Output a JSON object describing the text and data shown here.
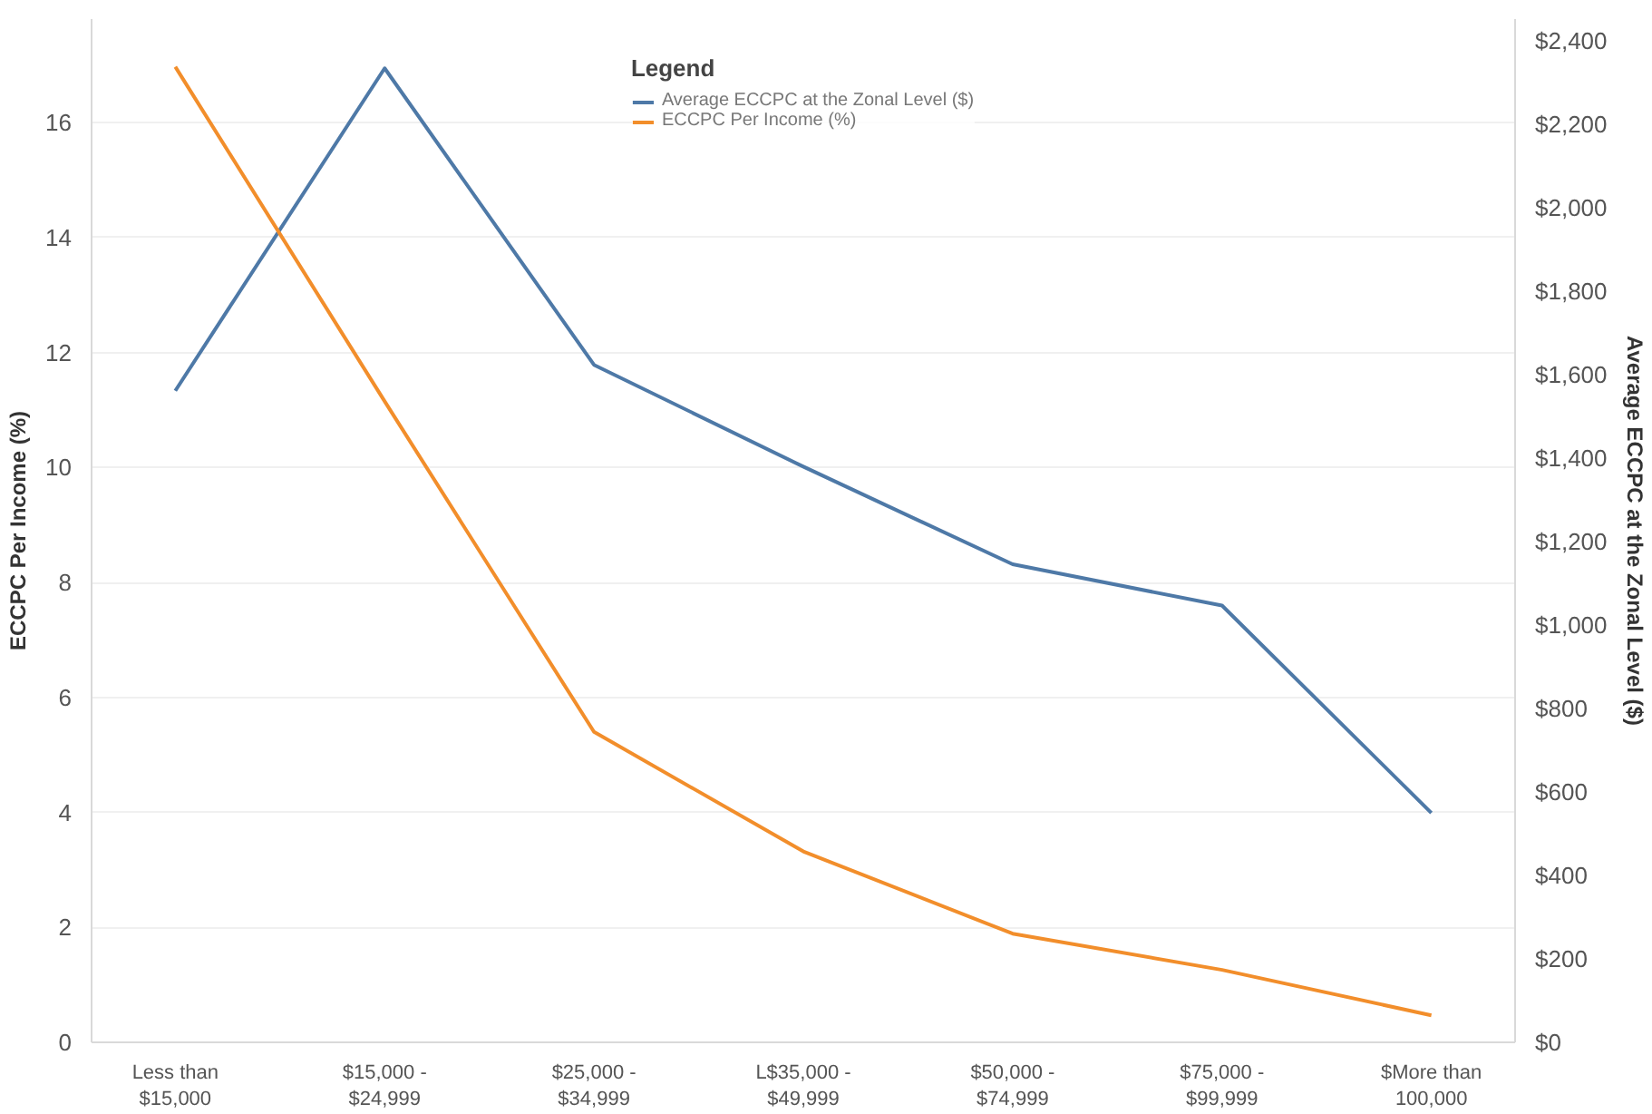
{
  "chart_data": {
    "type": "line",
    "categories": [
      "Less than\n$15,000",
      "$15,000 -\n$24,999",
      "$25,000 -\n$34,999",
      "L$35,000 -\n$49,999",
      "$50,000 -\n$74,999",
      "$75,000 -\n$99,999",
      "$More than\n100,000"
    ],
    "series": [
      {
        "name": "Average ECCPC at the Zonal Level ($)",
        "color": "#4e79a7",
        "axis": "y2",
        "values": [
          1562,
          2335,
          1624,
          1380,
          1146,
          1047,
          550
        ]
      },
      {
        "name": "ECCPC Per Income (%)",
        "color": "#f28e2b",
        "values": [
          16.97,
          11.15,
          5.4,
          3.32,
          1.89,
          1.26,
          0.47
        ]
      }
    ],
    "ylabel": "ECCPC Per Income (%)",
    "y2label": "Average ECCPC at the Zonal Level ($)",
    "legend_title": "Legend",
    "legend": "top",
    "ylim": [
      0,
      17.8
    ],
    "yticks": [
      0,
      2,
      4,
      6,
      8,
      10,
      12,
      14,
      16
    ],
    "y2lim": [
      0,
      2453
    ],
    "y2ticks": [
      {
        "value": 0,
        "label": "$0"
      },
      {
        "value": 200,
        "label": "$200"
      },
      {
        "value": 400,
        "label": "$400"
      },
      {
        "value": 600,
        "label": "$600"
      },
      {
        "value": 800,
        "label": "$800"
      },
      {
        "value": 1000,
        "label": "$1,000"
      },
      {
        "value": 1200,
        "label": "$1,200"
      },
      {
        "value": 1400,
        "label": "$1,400"
      },
      {
        "value": 1600,
        "label": "$1,600"
      },
      {
        "value": 1800,
        "label": "$1,800"
      },
      {
        "value": 2000,
        "label": "$2,000"
      },
      {
        "value": 2200,
        "label": "$2,200"
      },
      {
        "value": 2400,
        "label": "$2,400"
      }
    ],
    "grid": "y",
    "marker": "none",
    "line_style": "solid"
  }
}
